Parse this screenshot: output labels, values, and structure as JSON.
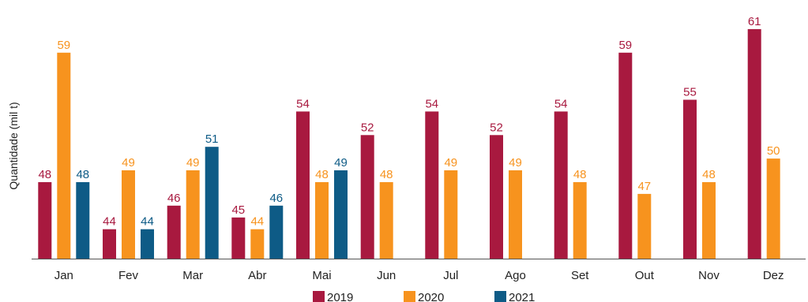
{
  "chart_data": {
    "type": "bar",
    "title": "",
    "xlabel": "",
    "ylabel": "Quantidade (mil t)",
    "ylim": [
      41.5,
      62
    ],
    "grid": false,
    "legend_position": "bottom",
    "categories": [
      "Jan",
      "Fev",
      "Mar",
      "Abr",
      "Mai",
      "Jun",
      "Jul",
      "Ago",
      "Set",
      "Out",
      "Nov",
      "Dez"
    ],
    "series": [
      {
        "name": "2019",
        "color": "#A8193F",
        "values": [
          48,
          44,
          46,
          45,
          54,
          52,
          54,
          52,
          54,
          59,
          55,
          61
        ]
      },
      {
        "name": "2020",
        "color": "#F7931E",
        "values": [
          59,
          49,
          49,
          44,
          48,
          48,
          49,
          49,
          48,
          47,
          48,
          50
        ]
      },
      {
        "name": "2021",
        "color": "#0E5B86",
        "values": [
          48,
          44,
          51,
          46,
          49,
          null,
          null,
          null,
          null,
          null,
          null,
          null
        ]
      }
    ]
  }
}
